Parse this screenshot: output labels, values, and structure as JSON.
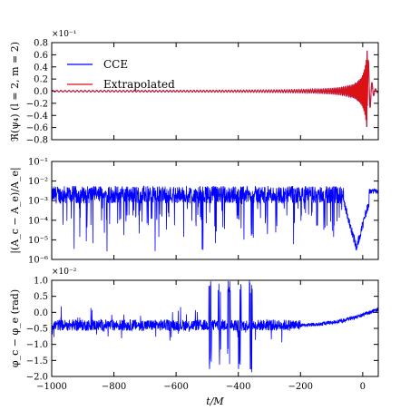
{
  "colors": {
    "cce": "#0000ff",
    "extrapolated": "#dd1111"
  },
  "x_axis": {
    "label": "t/M",
    "range": [
      -1000,
      50
    ],
    "ticks": [
      -1000,
      -800,
      -600,
      -400,
      -200,
      0
    ],
    "tick_labels": [
      "−1000",
      "−800",
      "−600",
      "−400",
      "−200",
      "0"
    ]
  },
  "chart_data": [
    {
      "type": "line",
      "ylabel": "ℜ(ψ₄) (l = 2, m = 2)",
      "multiplier": "×10⁻¹",
      "ylim": [
        -0.8,
        0.8
      ],
      "yticks": [
        -0.8,
        -0.6,
        -0.4,
        -0.2,
        0.0,
        0.2,
        0.4,
        0.6,
        0.8
      ],
      "ytick_labels": [
        "−0.8",
        "−0.6",
        "−0.4",
        "−0.2",
        "0.0",
        "0.2",
        "0.4",
        "0.6",
        "0.8"
      ],
      "legend": {
        "placement": "upper-left",
        "entries": [
          "CCE",
          "Extrapolated"
        ]
      },
      "series": [
        {
          "name": "CCE",
          "color": "#0000ff"
        },
        {
          "name": "Extrapolated",
          "color": "#dd1111"
        }
      ],
      "waveform": {
        "base_amplitude": 0.01,
        "merger_t": 15,
        "peak_amplitude": 0.72,
        "ringdown_end_t": 50
      }
    },
    {
      "type": "line",
      "ylabel": "|(A_c − A_e)/A_e|",
      "yscale": "log",
      "ylim": [
        1e-06,
        0.1
      ],
      "yticks": [
        1e-06,
        1e-05,
        0.0001,
        0.001,
        0.01,
        0.1
      ],
      "ytick_labels": [
        "10⁻⁶",
        "10⁻⁵",
        "10⁻⁴",
        "10⁻³",
        "10⁻²",
        "10⁻¹"
      ],
      "series": [
        {
          "color": "#0000ff",
          "typical_value": 0.002,
          "min_value": 2.5e-06,
          "max_value": 0.01,
          "final_value": 0.003
        }
      ]
    },
    {
      "type": "line",
      "ylabel": "φ_c − φ_e (rad)",
      "multiplier": "×10⁻²",
      "ylim": [
        -2.0,
        1.0
      ],
      "yticks": [
        -2.0,
        -1.5,
        -1.0,
        -0.5,
        0.0,
        0.5,
        1.0
      ],
      "ytick_labels": [
        "−2.0",
        "−1.5",
        "−1.0",
        "−0.5",
        "0.0",
        "0.5",
        "1.0"
      ],
      "series": [
        {
          "color": "#0000ff",
          "baseline": -0.4,
          "final_value": 0.1,
          "spikes_t": [
            -490,
            -460,
            -430,
            -395,
            -360
          ],
          "spike_max": 1.0,
          "spike_min": -1.9
        }
      ]
    }
  ]
}
